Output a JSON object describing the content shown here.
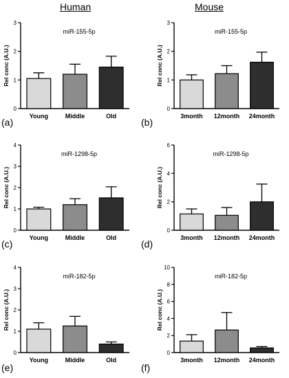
{
  "column_headers": [
    "Human",
    "Mouse"
  ],
  "panel_labels": [
    "(a)",
    "(b)",
    "(c)",
    "(d)",
    "(e)",
    "(f)"
  ],
  "colors": {
    "light": "#d9d9d9",
    "mid": "#8c8c8c",
    "dark": "#2e2e2e",
    "axis": "#000000"
  },
  "chart_data": [
    {
      "type": "bar",
      "title": "miR-155-5p",
      "ylabel": "Rel conc (A.U.)",
      "categories": [
        "Young",
        "Middle",
        "Old"
      ],
      "values": [
        1.05,
        1.2,
        1.45
      ],
      "errors": [
        0.2,
        0.35,
        0.38
      ],
      "ylim": [
        0,
        3
      ],
      "yticks": [
        0,
        1,
        2,
        3
      ]
    },
    {
      "type": "bar",
      "title": "miR-155-5p",
      "ylabel": "Rel conc (A.U.)",
      "categories": [
        "3month",
        "12month",
        "24month"
      ],
      "values": [
        1.0,
        1.22,
        1.62
      ],
      "errors": [
        0.18,
        0.28,
        0.35
      ],
      "ylim": [
        0,
        3
      ],
      "yticks": [
        0,
        1,
        2,
        3
      ]
    },
    {
      "type": "bar",
      "title": "miR-1298-5p",
      "ylabel": "Rel conc (A.U.)",
      "categories": [
        "Young",
        "Middle",
        "Old"
      ],
      "values": [
        1.0,
        1.2,
        1.52
      ],
      "errors": [
        0.08,
        0.28,
        0.52
      ],
      "ylim": [
        0,
        4
      ],
      "yticks": [
        0,
        1,
        2,
        3,
        4
      ]
    },
    {
      "type": "bar",
      "title": "miR-1298-5p",
      "ylabel": "Rel conc (A.U.)",
      "categories": [
        "3month",
        "12month",
        "24month"
      ],
      "values": [
        1.15,
        1.05,
        2.0
      ],
      "errors": [
        0.35,
        0.55,
        1.25
      ],
      "ylim": [
        0,
        6
      ],
      "yticks": [
        0,
        2,
        4,
        6
      ]
    },
    {
      "type": "bar",
      "title": "miR-182-5p",
      "ylabel": "Rel conc (A.U.)",
      "categories": [
        "Young",
        "Middle",
        "Old"
      ],
      "values": [
        1.1,
        1.25,
        0.4
      ],
      "errors": [
        0.3,
        0.45,
        0.1
      ],
      "ylim": [
        0,
        4
      ],
      "yticks": [
        0,
        1,
        2,
        3,
        4
      ]
    },
    {
      "type": "bar",
      "title": "miR-182-5p",
      "ylabel": "Rel conc (A.U.)",
      "categories": [
        "3month",
        "12month",
        "24month"
      ],
      "values": [
        1.35,
        2.65,
        0.55
      ],
      "errors": [
        0.75,
        2.05,
        0.15
      ],
      "ylim": [
        0,
        10
      ],
      "yticks": [
        0,
        2,
        4,
        6,
        8,
        10
      ]
    }
  ]
}
